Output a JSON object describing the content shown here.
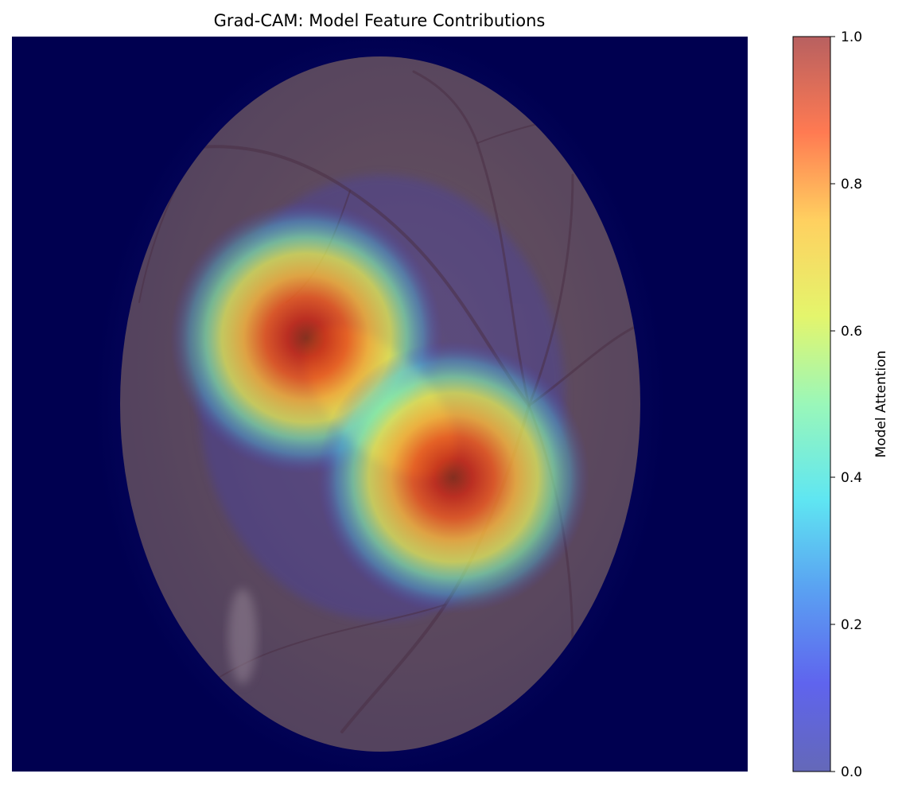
{
  "chart_data": {
    "type": "heatmap",
    "title": "Grad-CAM: Model Feature Contributions",
    "background_image": "retinal-fundus-photograph",
    "overlay_colormap": "jet",
    "overlay_alpha": 0.6,
    "hotspots": [
      {
        "label": "",
        "peak_value": 1.0,
        "x": 0.4,
        "y": 0.41,
        "spread": 0.1
      },
      {
        "label": "",
        "peak_value": 1.0,
        "x": 0.6,
        "y": 0.6,
        "spread": 0.1
      }
    ],
    "colorbar": {
      "label": "Model Attention",
      "range": [
        0.0,
        1.0
      ],
      "ticks": [
        "0.0",
        "0.2",
        "0.4",
        "0.6",
        "0.8",
        "1.0"
      ]
    },
    "axes_visible": false
  },
  "colors": {
    "background_navy": "#000050",
    "fundus_tone": "#6a5448"
  }
}
